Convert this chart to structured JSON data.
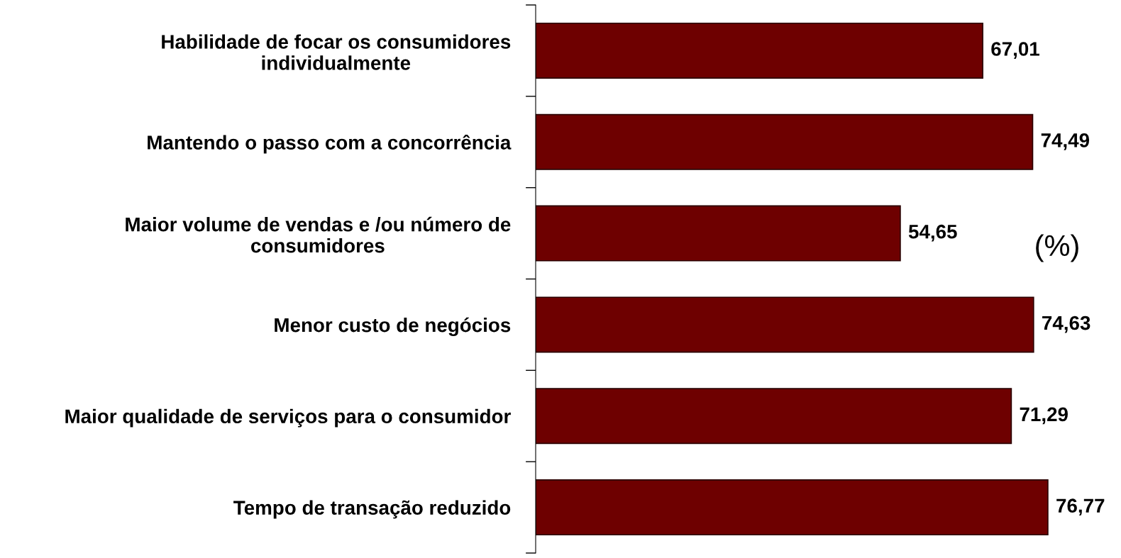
{
  "chart_data": {
    "type": "bar",
    "orientation": "horizontal",
    "categories": [
      "Habilidade de focar os consumidores\nindividualmente",
      "Mantendo o passo com a concorrência",
      "Maior volume de vendas e /ou número de\nconsumidores",
      "Menor custo de negócios",
      "Maior qualidade de serviços para o consumidor",
      "Tempo de transação reduzido"
    ],
    "values": [
      67.01,
      74.49,
      54.65,
      74.63,
      71.29,
      76.77
    ],
    "value_labels": [
      "67,01",
      "74,49",
      "54,65",
      "74,63",
      "71,29",
      "76,77"
    ],
    "color": "#6e0000",
    "tick_labels": "y",
    "grid": false,
    "legend": false,
    "annotations": [
      "(%)"
    ]
  }
}
